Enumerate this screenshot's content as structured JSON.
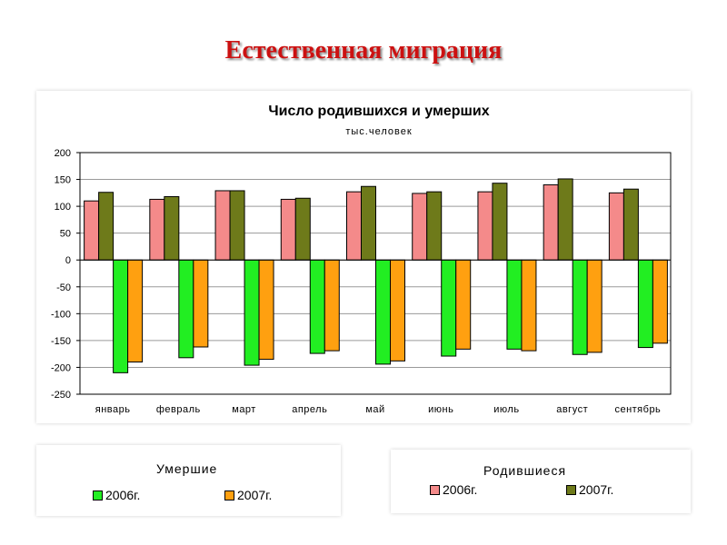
{
  "slide_title": "Естественная миграция",
  "chart_data": {
    "type": "bar",
    "title": "Число родившихся и умерших",
    "subtitle": "тыс.человек",
    "xlabel": "",
    "ylabel": "",
    "ylim": [
      -250,
      200
    ],
    "ytick_step": 50,
    "categories": [
      "январь",
      "февраль",
      "март",
      "апрель",
      "май",
      "июнь",
      "июль",
      "август",
      "сентябрь"
    ],
    "series": [
      {
        "name": "Родившиеся 2006г.",
        "color": "#f48a8a",
        "values": [
          110,
          113,
          129,
          113,
          127,
          124,
          127,
          140,
          125
        ]
      },
      {
        "name": "Родившиеся 2007г.",
        "color": "#6e7a1a",
        "values": [
          126,
          118,
          129,
          115,
          137,
          127,
          143,
          151,
          132
        ]
      },
      {
        "name": "Умершие 2006г.",
        "color": "#22ee22",
        "values": [
          -210,
          -182,
          -196,
          -174,
          -194,
          -179,
          -166,
          -176,
          -163
        ]
      },
      {
        "name": "Умершие 2007г.",
        "color": "#ffa010",
        "values": [
          -190,
          -162,
          -185,
          -169,
          -188,
          -166,
          -169,
          -172,
          -155
        ]
      }
    ],
    "grid": true
  },
  "legend_died": {
    "title": "Умершие",
    "entries": [
      {
        "label": "2006г.",
        "color": "#22ee22"
      },
      {
        "label": "2007г.",
        "color": "#ffa010"
      }
    ]
  },
  "legend_born": {
    "title": "Родившиеся",
    "entries": [
      {
        "label": "2006г.",
        "color": "#f48a8a"
      },
      {
        "label": "2007г.",
        "color": "#6e7a1a"
      }
    ]
  }
}
